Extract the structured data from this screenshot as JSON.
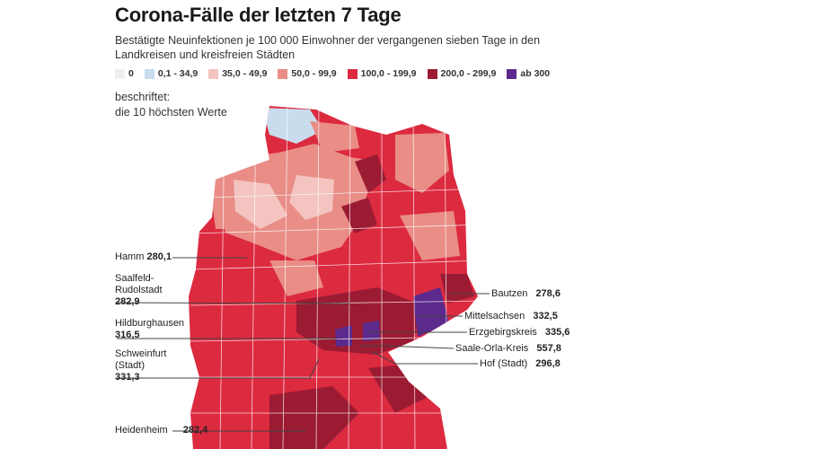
{
  "title": "Corona-Fälle der letzten 7 Tage",
  "subtitle": "Bestätigte Neuinfektionen je 100 000 Einwohner der vergangenen sieben Tage in den Landkreisen und kreisfreien Städten",
  "legend": [
    {
      "label": "0",
      "color": "#efefef"
    },
    {
      "label": "0,1 - 34,9",
      "color": "#c9dcee"
    },
    {
      "label": "35,0 - 49,9",
      "color": "#f3c4c0"
    },
    {
      "label": "50,0 - 99,9",
      "color": "#e98d86"
    },
    {
      "label": "100,0 - 199,9",
      "color": "#dc2a3f"
    },
    {
      "label": "200,0 - 299,9",
      "color": "#9b1b33"
    },
    {
      "label": "ab 300",
      "color": "#5b2a8c"
    }
  ],
  "note_line1": "beschriftet:",
  "note_line2": "die 10 höchsten Werte",
  "left_labels": {
    "hamm": {
      "name": "Hamm",
      "value": "280,1"
    },
    "saalfeld": {
      "name1": "Saalfeld-",
      "name2": "Rudolstadt",
      "value": "282,9"
    },
    "hildburghausen": {
      "name": "Hildburghausen",
      "value": "316,5"
    },
    "schweinfurt": {
      "name1": "Schweinfurt",
      "name2": "(Stadt)",
      "value": "331,3"
    },
    "heidenheim": {
      "name": "Heidenheim",
      "value": "282,4"
    }
  },
  "right_labels": {
    "bautzen": {
      "name": "Bautzen",
      "value": "278,6"
    },
    "mittelsachsen": {
      "name": "Mittelsachsen",
      "value": "332,5"
    },
    "erzgebirgskreis": {
      "name": "Erzgebirgskreis",
      "value": "335,6"
    },
    "saale_orla": {
      "name": "Saale-Orla-Kreis",
      "value": "557,8"
    },
    "hof": {
      "name": "Hof (Stadt)",
      "value": "296,8"
    }
  }
}
